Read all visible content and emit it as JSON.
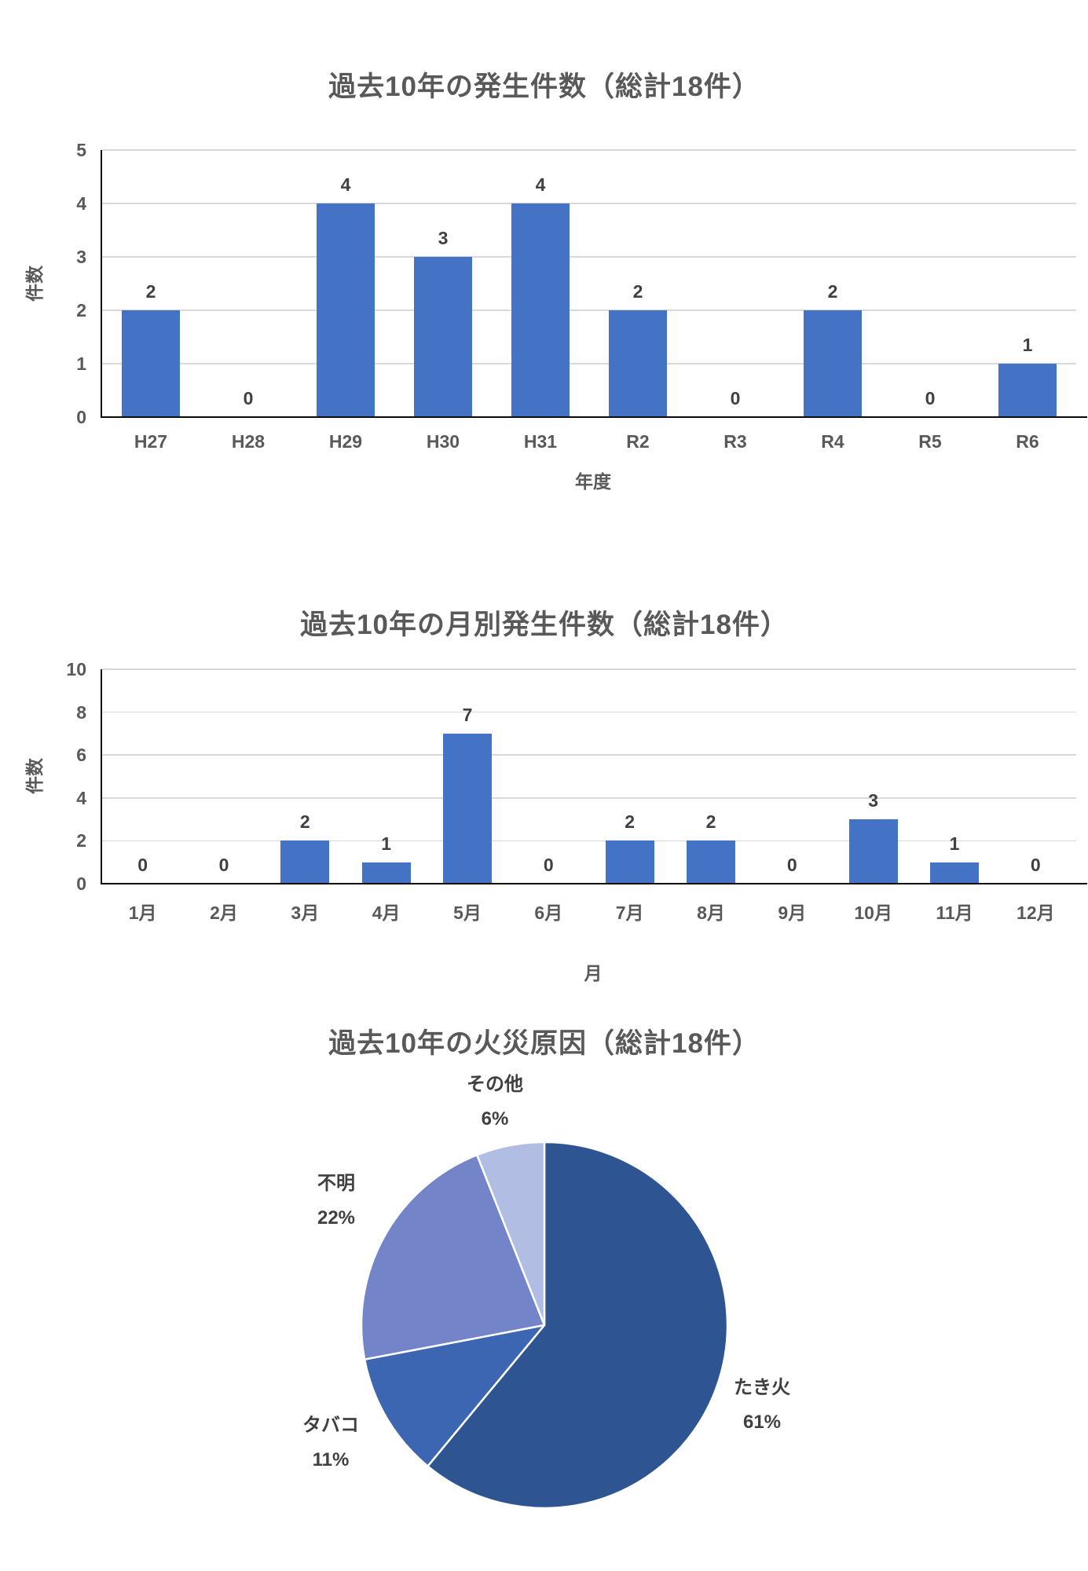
{
  "page": {
    "background": "#ffffff",
    "text_color": "#595959",
    "data_label_color": "#404040"
  },
  "chart_data": [
    {
      "type": "bar",
      "title": "過去10年の発生件数（総計18件）",
      "xlabel": "年度",
      "ylabel": "件数",
      "categories": [
        "H27",
        "H28",
        "H29",
        "H30",
        "H31",
        "R2",
        "R3",
        "R4",
        "R5",
        "R6"
      ],
      "values": [
        2,
        0,
        4,
        3,
        4,
        2,
        0,
        2,
        0,
        1
      ],
      "ylim": [
        0,
        5
      ],
      "ytick_step": 1,
      "grid": true,
      "legend": "none",
      "bar_color": "#4472C4",
      "gridline_color": "#D9D9D9",
      "axis_line_color": "#0a0a0a"
    },
    {
      "type": "bar",
      "title": "過去10年の月別発生件数（総計18件）",
      "xlabel": "月",
      "ylabel": "件数",
      "categories": [
        "1月",
        "2月",
        "3月",
        "4月",
        "5月",
        "6月",
        "7月",
        "8月",
        "9月",
        "10月",
        "11月",
        "12月"
      ],
      "values": [
        0,
        0,
        2,
        1,
        7,
        0,
        2,
        2,
        0,
        3,
        1,
        0
      ],
      "ylim": [
        0,
        10
      ],
      "ytick_step": 2,
      "grid": true,
      "legend": "none",
      "bar_color": "#4472C4",
      "gridline_color": "#D9D9D9",
      "axis_line_color": "#0a0a0a"
    },
    {
      "type": "pie",
      "title": "過去10年の火災原因（総計18件）",
      "start_angle_deg": 0,
      "direction": "clockwise",
      "border_color": "#FFFFFF",
      "legend": "none",
      "slices": [
        {
          "label": "たき火",
          "pct": 61,
          "pct_label": "61%",
          "color": "#2E5591"
        },
        {
          "label": "タバコ",
          "pct": 11,
          "pct_label": "11%",
          "color": "#3C66B1"
        },
        {
          "label": "不明",
          "pct": 22,
          "pct_label": "22%",
          "color": "#7384C9"
        },
        {
          "label": "その他",
          "pct": 6,
          "pct_label": "6%",
          "color": "#B2BDE4"
        }
      ]
    }
  ]
}
